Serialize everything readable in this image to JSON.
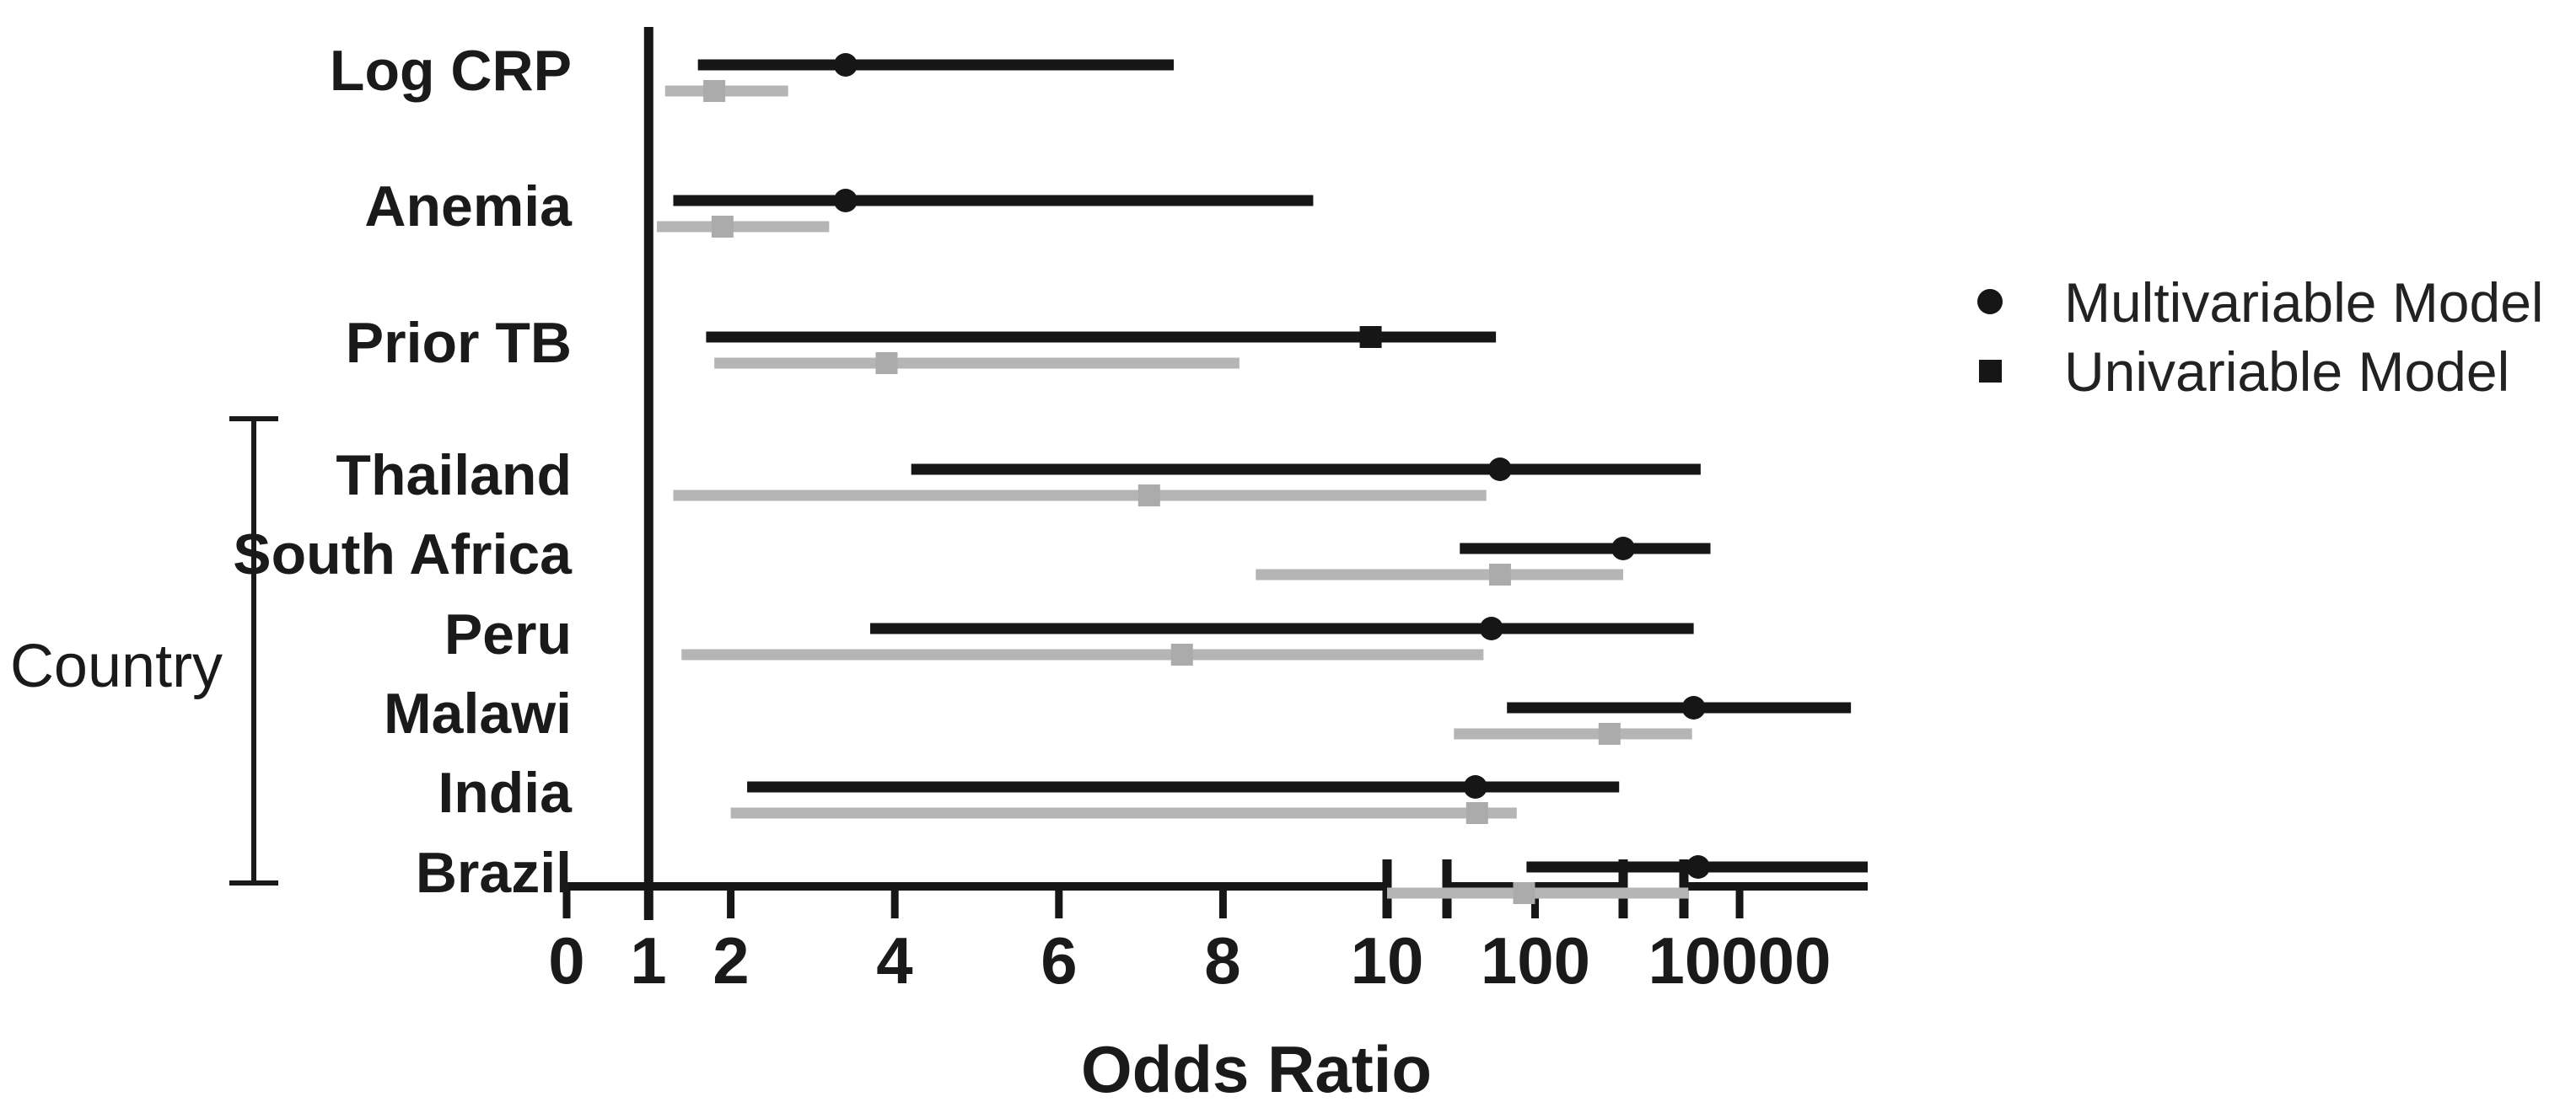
{
  "figure": {
    "kind": "forest-plot",
    "x_axis_label": "Odds Ratio",
    "group_label": "Country",
    "colors": {
      "multivariable": "#161616",
      "univariable_line": "#b5b5b5",
      "univariable_marker": "#ababab",
      "background": "#ffffff"
    }
  },
  "legend": {
    "items": [
      {
        "label": "Multivariable Model",
        "marker": "circle",
        "color": "#161616"
      },
      {
        "label": "Univariable Model",
        "marker": "square",
        "color": "#161616"
      }
    ]
  },
  "axis": {
    "label": "Odds Ratio",
    "reference_line_value": 1,
    "scale": "segmented: linear 0-10, axis break, log 10-1000, axis break, log 1000+",
    "breaks": 2,
    "ticks": [
      {
        "label": "0",
        "value": 0
      },
      {
        "label": "1",
        "value": 1
      },
      {
        "label": "2",
        "value": 2
      },
      {
        "label": "4",
        "value": 4
      },
      {
        "label": "6",
        "value": 6
      },
      {
        "label": "8",
        "value": 8
      },
      {
        "label": "10",
        "value": 10
      },
      {
        "label": "100",
        "value": 100
      },
      {
        "label": "10000",
        "value": 10000
      }
    ]
  },
  "chart_data": {
    "type": "forest",
    "title": "",
    "xlabel": "Odds Ratio",
    "series": [
      {
        "name": "Multivariable Model",
        "marker": "circle",
        "color": "black"
      },
      {
        "name": "Univariable Model",
        "marker": "square",
        "color": "gray"
      }
    ],
    "note": "Values estimated from plot pixels; axis is segmented (linear 0-10, then log with two breaks). Very large upper limits indicate CI lines running past the axis breaks.",
    "rows": [
      {
        "label": "Log CRP",
        "group": null,
        "multivariable": {
          "or": 3.4,
          "ci_low": 1.6,
          "ci_high": 7.4
        },
        "univariable": {
          "or": 1.8,
          "ci_low": 1.2,
          "ci_high": 2.7
        }
      },
      {
        "label": "Anemia",
        "group": null,
        "multivariable": {
          "or": 3.4,
          "ci_low": 1.3,
          "ci_high": 9.1
        },
        "univariable": {
          "or": 1.9,
          "ci_low": 1.1,
          "ci_high": 3.2
        }
      },
      {
        "label": "Prior TB",
        "group": null,
        "multivariable": {
          "or": 9.8,
          "ci_low": 1.7,
          "ci_high": 36,
          "marker_shape": "square"
        },
        "univariable": {
          "or": 3.9,
          "ci_low": 1.8,
          "ci_high": 8.2
        }
      },
      {
        "label": "Thailand",
        "group": "Country",
        "multivariable": {
          "or": 40,
          "ci_low": 4.2,
          "ci_high": 2000
        },
        "univariable": {
          "or": 7.1,
          "ci_low": 1.3,
          "ci_high": 28
        }
      },
      {
        "label": "South Africa",
        "group": "Country",
        "multivariable": {
          "or": 1000,
          "ci_low": 14,
          "ci_high": 3000
        },
        "univariable": {
          "or": 40,
          "ci_low": 8.4,
          "ci_high": 1000
        }
      },
      {
        "label": "Peru",
        "group": "Country",
        "multivariable": {
          "or": 32,
          "ci_low": 3.7,
          "ci_high": 1500
        },
        "univariable": {
          "or": 7.5,
          "ci_low": 1.4,
          "ci_high": 26
        }
      },
      {
        "label": "Malawi",
        "group": "Country",
        "multivariable": {
          "or": 1500,
          "ci_low": 48,
          "ci_high": 1000000
        },
        "univariable": {
          "or": 700,
          "ci_low": 12,
          "ci_high": 1400
        }
      },
      {
        "label": "India",
        "group": "Country",
        "multivariable": {
          "or": 21,
          "ci_low": 2.2,
          "ci_high": 900
        },
        "univariable": {
          "or": 22,
          "ci_low": 2.0,
          "ci_high": 62
        }
      },
      {
        "label": "Brazil",
        "group": "Country",
        "multivariable": {
          "or": 1800,
          "ci_low": 80,
          "ci_high": 2000000
        },
        "univariable": {
          "or": 75,
          "ci_low": 10,
          "ci_high": 1200
        }
      }
    ]
  }
}
